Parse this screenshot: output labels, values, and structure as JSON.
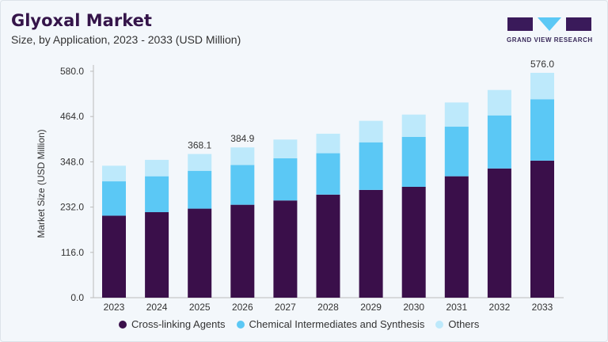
{
  "header": {
    "title": "Glyoxal Market",
    "subtitle": "Size, by Application, 2023 - 2033 (USD Million)"
  },
  "logo": {
    "text": "GRAND VIEW RESEARCH"
  },
  "colors": {
    "cross_linking": "#3a0f4a",
    "chemical": "#5bc8f5",
    "others": "#bde9fb",
    "title": "#35154a"
  },
  "chart_data": {
    "type": "bar",
    "stacked": true,
    "title": "Glyoxal Market",
    "subtitle": "Size, by Application, 2023 - 2033 (USD Million)",
    "xlabel": "",
    "ylabel": "Market Size (USD Million)",
    "ylim": [
      0,
      580
    ],
    "yticks": [
      "0.0",
      "116.0",
      "232.0",
      "348.0",
      "464.0",
      "580.0"
    ],
    "ytick_values": [
      0,
      116,
      232,
      348,
      464,
      580
    ],
    "categories": [
      "2023",
      "2024",
      "2025",
      "2026",
      "2027",
      "2028",
      "2029",
      "2030",
      "2031",
      "2032",
      "2033"
    ],
    "series": [
      {
        "name": "Cross-linking Agents",
        "values": [
          210,
          219,
          228,
          238,
          249,
          264,
          276,
          284,
          311,
          331,
          351
        ]
      },
      {
        "name": "Chemical Intermediates and Synthesis",
        "values": [
          88,
          92,
          97,
          102,
          108,
          106,
          122,
          128,
          127,
          136,
          157
        ]
      },
      {
        "name": "Others",
        "values": [
          40,
          42,
          43.1,
          44.9,
          48,
          50,
          55,
          57,
          62,
          65,
          68
        ]
      }
    ],
    "data_labels": [
      {
        "category": "2025",
        "text": "368.1"
      },
      {
        "category": "2026",
        "text": "384.9"
      },
      {
        "category": "2033",
        "text": "576.0"
      }
    ],
    "grid": false,
    "legend": "bottom"
  }
}
